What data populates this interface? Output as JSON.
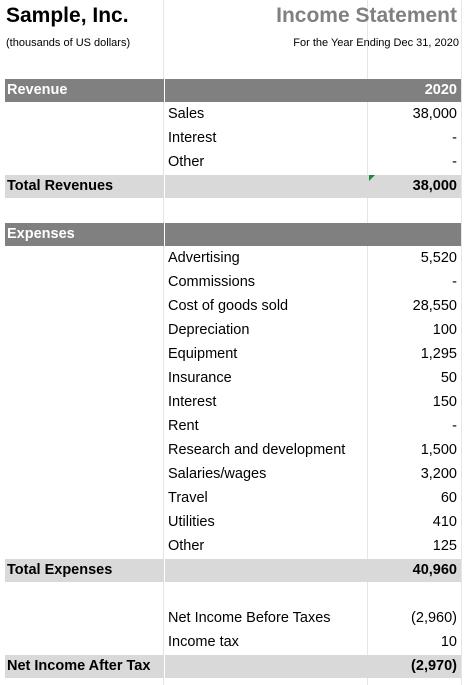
{
  "header": {
    "company": "Sample, Inc.",
    "units": "(thousands of US dollars)",
    "title": "Income Statement",
    "period": "For the Year Ending Dec 31, 2020"
  },
  "revenue": {
    "heading": "Revenue",
    "year": "2020",
    "items": [
      {
        "label": "Sales",
        "value": "38,000"
      },
      {
        "label": "Interest",
        "value": "-"
      },
      {
        "label": "Other",
        "value": "-"
      }
    ],
    "total_label": "Total Revenues",
    "total_value": "38,000"
  },
  "expenses": {
    "heading": "Expenses",
    "items": [
      {
        "label": "Advertising",
        "value": "5,520"
      },
      {
        "label": "Commissions",
        "value": "-"
      },
      {
        "label": "Cost of goods sold",
        "value": "28,550"
      },
      {
        "label": "Depreciation",
        "value": "100"
      },
      {
        "label": "Equipment",
        "value": "1,295"
      },
      {
        "label": "Insurance",
        "value": "50"
      },
      {
        "label": "Interest",
        "value": "150"
      },
      {
        "label": "Rent",
        "value": "-"
      },
      {
        "label": "Research and development",
        "value": "1,500"
      },
      {
        "label": "Salaries/wages",
        "value": "3,200"
      },
      {
        "label": "Travel",
        "value": "60"
      },
      {
        "label": "Utilities",
        "value": "410"
      },
      {
        "label": "Other",
        "value": "125"
      }
    ],
    "total_label": "Total Expenses",
    "total_value": "40,960"
  },
  "summary": {
    "items": [
      {
        "label": "Net Income Before Taxes",
        "value": "(2,960)"
      },
      {
        "label": "Income tax",
        "value": "10"
      }
    ],
    "total_label": "Net Income After Tax",
    "total_value": "(2,970)"
  },
  "colors": {
    "header_fill": "#808080",
    "total_fill": "#d9d9d9",
    "title_gray": "#808080",
    "cell_marker": "#1e8a3c"
  }
}
